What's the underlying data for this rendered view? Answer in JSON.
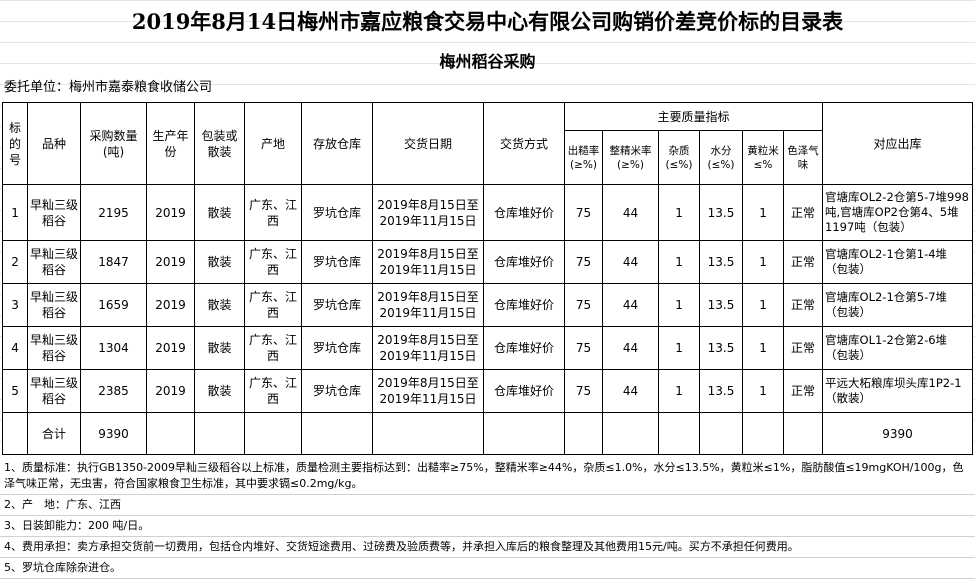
{
  "title": "2019年8月14日梅州市嘉应粮食交易中心有限公司购销价差竞价标的目录表",
  "subtitle": "梅州稻谷采购",
  "client": "委托单位：梅州市嘉泰粮食收储公司",
  "headers": {
    "no": "标的号",
    "variety": "品种",
    "qty": "采购数量(吨)",
    "year": "生产年份",
    "pack": "包装或散装",
    "origin": "产地",
    "warehouse": "存放仓库",
    "date": "交货日期",
    "method": "交货方式",
    "quality": "主要质量指标",
    "q1": "出糙率(≥%)",
    "q2": "整精米率(≥%)",
    "q3": "杂质(≤%)",
    "q4": "水分(≤%)",
    "q5": "黄粒米≤%",
    "q6": "色泽气味",
    "out": "对应出库"
  },
  "rows": [
    {
      "no": "1",
      "variety": "早籼三级稻谷",
      "qty": "2195",
      "year": "2019",
      "pack": "散装",
      "origin": "广东、江西",
      "warehouse": "罗坑仓库",
      "date": "2019年8月15日至2019年11月15日",
      "method": "仓库堆好价",
      "q1": "75",
      "q2": "44",
      "q3": "1",
      "q4": "13.5",
      "q5": "1",
      "q6": "正常",
      "out": "官塘库OL2-2仓第5-7堆998吨,官塘库OP2仓第4、5堆1197吨（包装）"
    },
    {
      "no": "2",
      "variety": "早籼三级稻谷",
      "qty": "1847",
      "year": "2019",
      "pack": "散装",
      "origin": "广东、江西",
      "warehouse": "罗坑仓库",
      "date": "2019年8月15日至2019年11月15日",
      "method": "仓库堆好价",
      "q1": "75",
      "q2": "44",
      "q3": "1",
      "q4": "13.5",
      "q5": "1",
      "q6": "正常",
      "out": "官塘库OL2-1仓第1-4堆（包装）"
    },
    {
      "no": "3",
      "variety": "早籼三级稻谷",
      "qty": "1659",
      "year": "2019",
      "pack": "散装",
      "origin": "广东、江西",
      "warehouse": "罗坑仓库",
      "date": "2019年8月15日至2019年11月15日",
      "method": "仓库堆好价",
      "q1": "75",
      "q2": "44",
      "q3": "1",
      "q4": "13.5",
      "q5": "1",
      "q6": "正常",
      "out": "官塘库OL2-1仓第5-7堆（包装）"
    },
    {
      "no": "4",
      "variety": "早籼三级稻谷",
      "qty": "1304",
      "year": "2019",
      "pack": "散装",
      "origin": "广东、江西",
      "warehouse": "罗坑仓库",
      "date": "2019年8月15日至2019年11月15日",
      "method": "仓库堆好价",
      "q1": "75",
      "q2": "44",
      "q3": "1",
      "q4": "13.5",
      "q5": "1",
      "q6": "正常",
      "out": "官塘库OL1-2仓第2-6堆（包装）"
    },
    {
      "no": "5",
      "variety": "早籼三级稻谷",
      "qty": "2385",
      "year": "2019",
      "pack": "散装",
      "origin": "广东、江西",
      "warehouse": "罗坑仓库",
      "date": "2019年8月15日至2019年11月15日",
      "method": "仓库堆好价",
      "q1": "75",
      "q2": "44",
      "q3": "1",
      "q4": "13.5",
      "q5": "1",
      "q6": "正常",
      "out": "平远大柘粮库坝头库1P2-1（散装）"
    }
  ],
  "total": {
    "label": "合计",
    "qty": "9390",
    "out": "9390"
  },
  "notes": [
    "1、质量标准：执行GB1350-2009早籼三级稻谷以上标准，质量检测主要指标达到：出糙率≥75%，整精米率≥44%，杂质≤1.0%，水分≤13.5%，黄粒米≤1%，脂肪酸值≤19mgKOH/100g，色泽气味正常，无虫害，符合国家粮食卫生标准，其中要求镉≤0.2mg/kg。",
    "2、产　地：广东、江西",
    "3、日装卸能力：200 吨/日。",
    "4、费用承担：卖方承担交货前一切费用，包括仓内堆好、交货短途费用、过磅费及验质费等，并承担入库后的粮食整理及其他费用15元/吨。买方不承担任何费用。",
    "5、罗坑仓库除杂进仓。"
  ]
}
